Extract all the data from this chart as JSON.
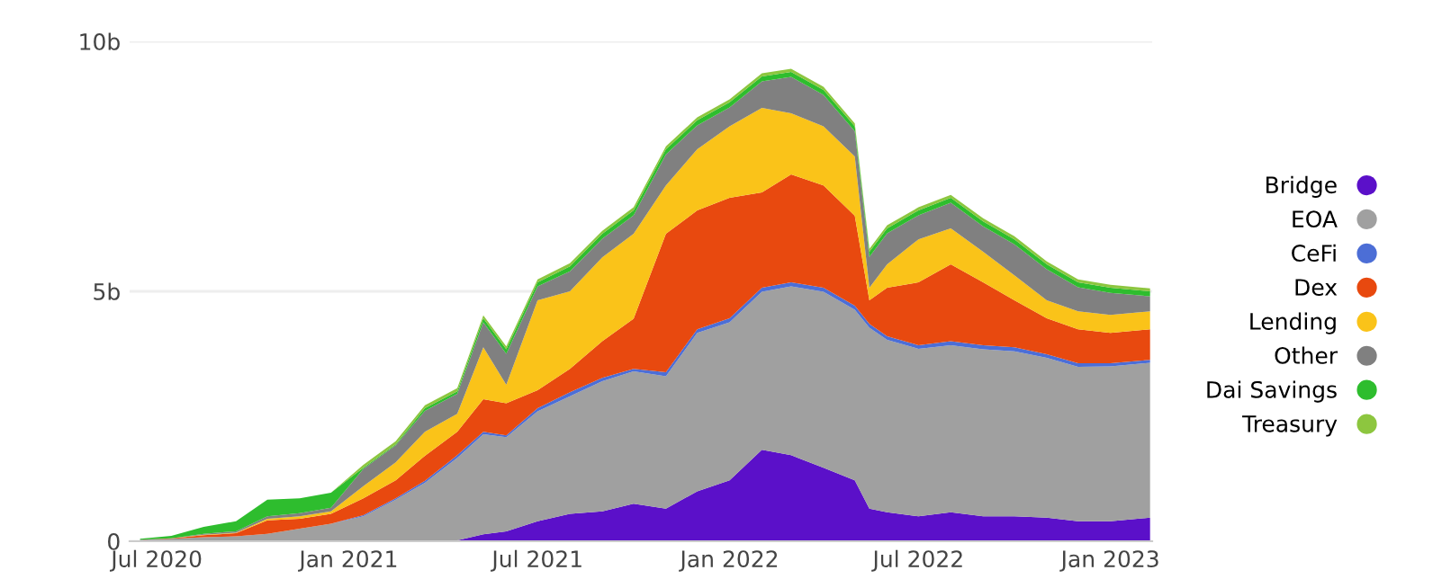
{
  "chart_data": {
    "type": "area",
    "stacked": true,
    "x": [
      "2020-06-15",
      "2020-07-15",
      "2020-08-15",
      "2020-09-15",
      "2020-10-15",
      "2020-11-15",
      "2020-12-15",
      "2021-01-15",
      "2021-02-15",
      "2021-03-15",
      "2021-04-15",
      "2021-05-10",
      "2021-06-01",
      "2021-07-01",
      "2021-08-01",
      "2021-09-01",
      "2021-10-01",
      "2021-11-01",
      "2021-12-01",
      "2022-01-01",
      "2022-02-01",
      "2022-03-01",
      "2022-04-01",
      "2022-05-01",
      "2022-05-15",
      "2022-06-01",
      "2022-07-01",
      "2022-08-01",
      "2022-09-01",
      "2022-10-01",
      "2022-11-01",
      "2022-12-01",
      "2023-01-01",
      "2023-02-08"
    ],
    "series": [
      {
        "name": "Bridge",
        "color": "#5b10c9",
        "values": [
          0,
          0,
          0,
          0,
          0,
          0,
          0,
          0,
          0,
          0,
          0.02,
          0.14,
          0.2,
          0.4,
          0.55,
          0.6,
          0.75,
          0.65,
          1.0,
          1.22,
          1.83,
          1.72,
          1.47,
          1.22,
          0.65,
          0.58,
          0.5,
          0.58,
          0.5,
          0.5,
          0.47,
          0.4,
          0.4,
          0.47
        ]
      },
      {
        "name": "EOA",
        "color": "#a0a0a0",
        "values": [
          0.03,
          0.05,
          0.08,
          0.1,
          0.15,
          0.25,
          0.35,
          0.5,
          0.83,
          1.17,
          1.65,
          2.0,
          1.88,
          2.2,
          2.35,
          2.6,
          2.65,
          2.65,
          3.17,
          3.16,
          3.16,
          3.38,
          3.52,
          3.41,
          3.62,
          3.45,
          3.35,
          3.34,
          3.34,
          3.3,
          3.2,
          3.09,
          3.1,
          3.1
        ]
      },
      {
        "name": "CeFi",
        "color": "#4c6ed6",
        "values": [
          0,
          0,
          0,
          0,
          0,
          0,
          0,
          0.02,
          0.03,
          0.04,
          0.05,
          0.05,
          0.04,
          0.06,
          0.08,
          0.07,
          0.05,
          0.08,
          0.07,
          0.08,
          0.08,
          0.08,
          0.08,
          0.08,
          0.08,
          0.07,
          0.07,
          0.08,
          0.08,
          0.08,
          0.07,
          0.07,
          0.06,
          0.06
        ]
      },
      {
        "name": "Dex",
        "color": "#e8490f",
        "values": [
          0,
          0.01,
          0.04,
          0.06,
          0.27,
          0.2,
          0.2,
          0.34,
          0.36,
          0.5,
          0.47,
          0.65,
          0.64,
          0.36,
          0.47,
          0.73,
          1.0,
          2.77,
          2.38,
          2.41,
          1.91,
          2.16,
          2.05,
          1.8,
          0.47,
          0.97,
          1.26,
          1.54,
          1.26,
          0.94,
          0.72,
          0.68,
          0.61,
          0.61
        ]
      },
      {
        "name": "Lending",
        "color": "#fac319",
        "values": [
          0,
          0,
          0.01,
          0.01,
          0.03,
          0.05,
          0.05,
          0.24,
          0.36,
          0.48,
          0.36,
          1.04,
          0.37,
          1.8,
          1.55,
          1.68,
          1.7,
          0.97,
          1.22,
          1.43,
          1.69,
          1.22,
          1.18,
          1.19,
          0.25,
          0.47,
          0.86,
          0.72,
          0.61,
          0.5,
          0.36,
          0.36,
          0.36,
          0.36
        ]
      },
      {
        "name": "Other",
        "color": "#808080",
        "values": [
          0,
          0,
          0.02,
          0.03,
          0.05,
          0.06,
          0.07,
          0.35,
          0.34,
          0.42,
          0.4,
          0.5,
          0.62,
          0.28,
          0.4,
          0.37,
          0.37,
          0.62,
          0.48,
          0.38,
          0.53,
          0.73,
          0.63,
          0.5,
          0.62,
          0.62,
          0.48,
          0.51,
          0.51,
          0.62,
          0.62,
          0.48,
          0.44,
          0.3
        ]
      },
      {
        "name": "Dai Savings",
        "color": "#2ebd2e",
        "values": [
          0.02,
          0.05,
          0.14,
          0.2,
          0.33,
          0.3,
          0.3,
          0.02,
          0.02,
          0.05,
          0.05,
          0.08,
          0.09,
          0.08,
          0.1,
          0.1,
          0.1,
          0.1,
          0.1,
          0.1,
          0.1,
          0.1,
          0.1,
          0.1,
          0.1,
          0.1,
          0.1,
          0.1,
          0.1,
          0.1,
          0.1,
          0.1,
          0.1,
          0.1
        ]
      },
      {
        "name": "Treasury",
        "color": "#8dc63f",
        "values": [
          0,
          0,
          0,
          0,
          0,
          0,
          0,
          0.06,
          0.06,
          0.06,
          0.06,
          0.06,
          0.06,
          0.06,
          0.06,
          0.06,
          0.06,
          0.06,
          0.06,
          0.06,
          0.06,
          0.06,
          0.06,
          0.06,
          0.06,
          0.06,
          0.06,
          0.06,
          0.06,
          0.06,
          0.06,
          0.06,
          0.06,
          0.06
        ]
      }
    ],
    "xlim": [
      "2020-06-05",
      "2023-02-10"
    ],
    "xticks": [
      {
        "value": "2020-07-01",
        "label": "Jul 2020"
      },
      {
        "value": "2021-01-01",
        "label": "Jan 2021"
      },
      {
        "value": "2021-07-01",
        "label": "Jul 2021"
      },
      {
        "value": "2022-01-01",
        "label": "Jan 2022"
      },
      {
        "value": "2022-07-01",
        "label": "Jul 2022"
      },
      {
        "value": "2023-01-01",
        "label": "Jan 2023"
      }
    ],
    "ylim": [
      0,
      10
    ],
    "yticks": [
      0,
      {
        "value": 5,
        "label": "5b"
      },
      {
        "value": 10,
        "label": "10b"
      }
    ],
    "grid": "y",
    "legend": "right"
  }
}
